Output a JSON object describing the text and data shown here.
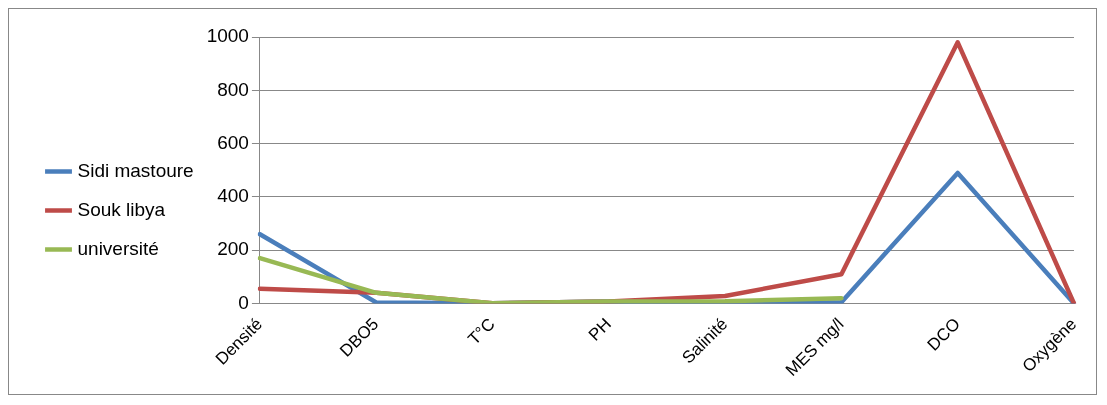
{
  "chart_data": {
    "type": "line",
    "categories": [
      "Densité",
      "DBO5",
      "T°C",
      "PH",
      "Salinité",
      "MES mg/l",
      "DCO",
      "Oxygène"
    ],
    "series": [
      {
        "name": "Sidi mastoure",
        "color": "#4a7ebb",
        "values": [
          260,
          4,
          1,
          7,
          3,
          5,
          490,
          0
        ]
      },
      {
        "name": "Souk libya",
        "color": "#be4b48",
        "values": [
          55,
          40,
          1,
          7,
          28,
          110,
          980,
          0
        ]
      },
      {
        "name": "université",
        "color": "#98b954",
        "values": [
          170,
          40,
          1,
          7,
          8,
          20,
          null,
          null
        ]
      }
    ],
    "ylim": [
      0,
      1000
    ],
    "yticks": [
      0,
      200,
      400,
      600,
      800,
      1000
    ],
    "grid": "y",
    "legend": "left",
    "marker": "none",
    "line_style": "solid"
  }
}
